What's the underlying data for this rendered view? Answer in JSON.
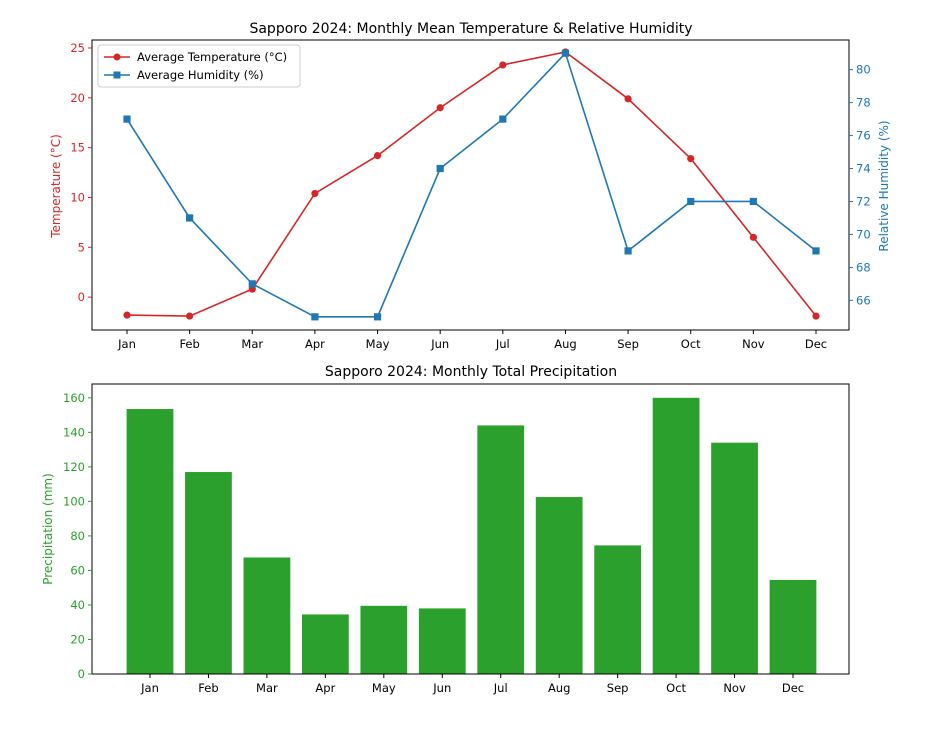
{
  "chart_data": [
    {
      "type": "line",
      "title": "Sapporo 2024: Monthly Mean Temperature & Relative Humidity",
      "categories": [
        "Jan",
        "Feb",
        "Mar",
        "Apr",
        "May",
        "Jun",
        "Jul",
        "Aug",
        "Sep",
        "Oct",
        "Nov",
        "Dec"
      ],
      "ylabel": "Temperature (°C)",
      "y2label": "Relative Humidity (%)",
      "ylim": [
        -3.3,
        25.8
      ],
      "y2lim": [
        64.2,
        81.8
      ],
      "yticks": [
        0,
        5,
        10,
        15,
        20,
        25
      ],
      "y2ticks": [
        66,
        68,
        70,
        72,
        74,
        76,
        78,
        80
      ],
      "legend_position": "top-left",
      "grid": false,
      "series": [
        {
          "name": "Average Temperature (°C)",
          "axis": "left",
          "color": "#d62728",
          "marker": "circle",
          "values": [
            -1.8,
            -1.9,
            0.8,
            10.4,
            14.2,
            19.0,
            23.3,
            24.6,
            19.9,
            13.9,
            6.0,
            -1.9
          ]
        },
        {
          "name": "Average Humidity (%)",
          "axis": "right",
          "color": "#1f77b4",
          "marker": "square",
          "values": [
            77,
            71,
            67,
            65,
            65,
            74,
            77,
            81,
            69,
            72,
            72,
            69
          ]
        }
      ]
    },
    {
      "type": "bar",
      "title": "Sapporo 2024: Monthly Total Precipitation",
      "categories": [
        "Jan",
        "Feb",
        "Mar",
        "Apr",
        "May",
        "Jun",
        "Jul",
        "Aug",
        "Sep",
        "Oct",
        "Nov",
        "Dec"
      ],
      "ylabel": "Precipitation (mm)",
      "ylim": [
        0,
        168
      ],
      "yticks": [
        0,
        20,
        40,
        60,
        80,
        100,
        120,
        140,
        160
      ],
      "color": "#2ca02c",
      "grid": false,
      "values": [
        153.5,
        117,
        67.5,
        34.5,
        39.5,
        38,
        144,
        102.5,
        74.5,
        160,
        134,
        54.5
      ]
    }
  ]
}
